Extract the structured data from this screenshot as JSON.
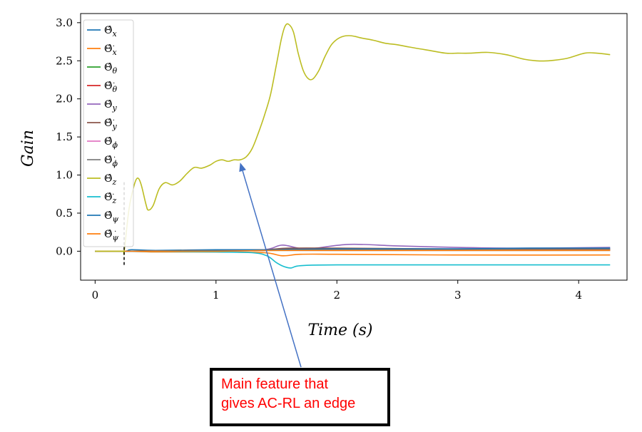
{
  "chart_data": {
    "type": "line",
    "xlabel": "Time (s)",
    "ylabel": "Gain",
    "xlim": [
      -0.12,
      4.4
    ],
    "ylim": [
      -0.38,
      3.12
    ],
    "x_ticks": [
      "0",
      "1",
      "2",
      "3",
      "4"
    ],
    "y_ticks": [
      "0.0",
      "0.5",
      "1.0",
      "1.5",
      "2.0",
      "2.5",
      "3.0"
    ],
    "legend_position": "upper left",
    "grid": false,
    "marker_x": 0.24,
    "marker_y_range": [
      -0.18,
      0.92
    ],
    "series": [
      {
        "name": "x",
        "dot": false,
        "color": "#1f77b4",
        "x": [
          0,
          0.24,
          0.3,
          0.5,
          1.0,
          1.4,
          1.6,
          2.0,
          3.0,
          4.26
        ],
        "y": [
          0,
          0,
          0.02,
          0.01,
          0.02,
          0.02,
          0.03,
          0.03,
          0.03,
          0.03
        ]
      },
      {
        "name": "x",
        "dot": true,
        "color": "#ff7f0e",
        "x": [
          0,
          0.24,
          0.5,
          1.0,
          1.4,
          1.55,
          1.7,
          2.0,
          3.0,
          4.26
        ],
        "y": [
          0,
          0,
          -0.01,
          -0.01,
          -0.02,
          -0.06,
          -0.04,
          -0.04,
          -0.05,
          -0.05
        ]
      },
      {
        "name": "θ",
        "dot": false,
        "color": "#2ca02c",
        "x": [
          0,
          0.24,
          1.0,
          1.4,
          1.6,
          2.0,
          3.0,
          4.26
        ],
        "y": [
          0,
          0,
          0.01,
          0.01,
          0.01,
          0.01,
          0.01,
          0.01
        ]
      },
      {
        "name": "θ",
        "dot": true,
        "color": "#d62728",
        "x": [
          0,
          0.24,
          1.0,
          1.4,
          1.6,
          2.0,
          3.0,
          4.26
        ],
        "y": [
          0,
          0,
          0.01,
          0.01,
          0.02,
          0.02,
          0.02,
          0.02
        ]
      },
      {
        "name": "y",
        "dot": false,
        "color": "#9467bd",
        "x": [
          0,
          0.24,
          1.0,
          1.4,
          1.55,
          1.75,
          2.1,
          2.5,
          3.0,
          3.5,
          4.26
        ],
        "y": [
          0,
          0,
          0.01,
          0.02,
          0.08,
          0.03,
          0.09,
          0.07,
          0.05,
          0.04,
          0.05
        ]
      },
      {
        "name": "y",
        "dot": true,
        "color": "#8c564b",
        "x": [
          0,
          0.24,
          1.0,
          1.4,
          1.6,
          2.0,
          3.0,
          4.26
        ],
        "y": [
          0,
          0,
          0.01,
          0.02,
          0.04,
          0.04,
          0.03,
          0.03
        ]
      },
      {
        "name": "ϕ",
        "dot": false,
        "color": "#e377c2",
        "x": [
          0,
          0.24,
          1.0,
          1.4,
          1.6,
          2.0,
          3.0,
          4.26
        ],
        "y": [
          0,
          0,
          0.0,
          0.01,
          0.01,
          0.01,
          0.01,
          0.01
        ]
      },
      {
        "name": "ϕ",
        "dot": true,
        "color": "#7f7f7f",
        "x": [
          0,
          0.24,
          1.0,
          1.4,
          1.6,
          2.0,
          3.0,
          4.26
        ],
        "y": [
          0,
          0,
          0.01,
          0.01,
          0.02,
          0.02,
          0.02,
          0.02
        ]
      },
      {
        "name": "z",
        "dot": false,
        "color": "#bcbd22",
        "x": [
          0,
          0.22,
          0.24,
          0.28,
          0.32,
          0.35,
          0.38,
          0.42,
          0.44,
          0.48,
          0.53,
          0.58,
          0.64,
          0.7,
          0.76,
          0.82,
          0.88,
          0.95,
          1.0,
          1.05,
          1.1,
          1.15,
          1.2,
          1.25,
          1.3,
          1.35,
          1.4,
          1.45,
          1.5,
          1.54,
          1.57,
          1.6,
          1.64,
          1.68,
          1.72,
          1.76,
          1.8,
          1.85,
          1.9,
          1.95,
          2.0,
          2.05,
          2.1,
          2.15,
          2.2,
          2.3,
          2.4,
          2.5,
          2.6,
          2.75,
          2.9,
          3.0,
          3.1,
          3.25,
          3.4,
          3.55,
          3.65,
          3.75,
          3.9,
          4.05,
          4.15,
          4.26
        ],
        "y": [
          0,
          0,
          0,
          0.55,
          0.85,
          0.96,
          0.88,
          0.62,
          0.54,
          0.6,
          0.82,
          0.9,
          0.87,
          0.92,
          1.02,
          1.1,
          1.09,
          1.13,
          1.18,
          1.2,
          1.18,
          1.2,
          1.2,
          1.24,
          1.35,
          1.55,
          1.78,
          2.05,
          2.45,
          2.78,
          2.95,
          2.98,
          2.88,
          2.6,
          2.38,
          2.27,
          2.26,
          2.37,
          2.55,
          2.7,
          2.78,
          2.82,
          2.83,
          2.82,
          2.8,
          2.77,
          2.73,
          2.71,
          2.68,
          2.64,
          2.6,
          2.6,
          2.6,
          2.61,
          2.58,
          2.52,
          2.5,
          2.5,
          2.53,
          2.6,
          2.6,
          2.58
        ]
      },
      {
        "name": "z",
        "dot": true,
        "color": "#17becf",
        "x": [
          0,
          0.24,
          1.0,
          1.3,
          1.42,
          1.5,
          1.56,
          1.62,
          1.7,
          2.0,
          3.0,
          4.26
        ],
        "y": [
          0,
          0,
          -0.01,
          -0.02,
          -0.06,
          -0.15,
          -0.2,
          -0.22,
          -0.19,
          -0.18,
          -0.18,
          -0.18
        ]
      },
      {
        "name": "ψ",
        "dot": false,
        "color": "#1f77b4",
        "x": [
          0,
          0.24,
          1.0,
          1.5,
          2.0,
          3.0,
          3.6,
          4.26
        ],
        "y": [
          0,
          0,
          0.01,
          0.02,
          0.03,
          0.03,
          0.04,
          0.04
        ]
      },
      {
        "name": "ψ",
        "dot": true,
        "color": "#ff7f0e",
        "x": [
          0,
          0.24,
          1.0,
          1.5,
          2.0,
          3.0,
          4.26
        ],
        "y": [
          0,
          0,
          0.0,
          0.01,
          0.01,
          0.01,
          0.01
        ]
      }
    ],
    "annotation": {
      "text_lines": [
        "Main feature that",
        "gives AC-RL an edge"
      ],
      "arrow_color": "#4472c4",
      "arrow_target_x": 1.2,
      "arrow_target_y": 1.2,
      "text_color": "#ff0000"
    }
  }
}
